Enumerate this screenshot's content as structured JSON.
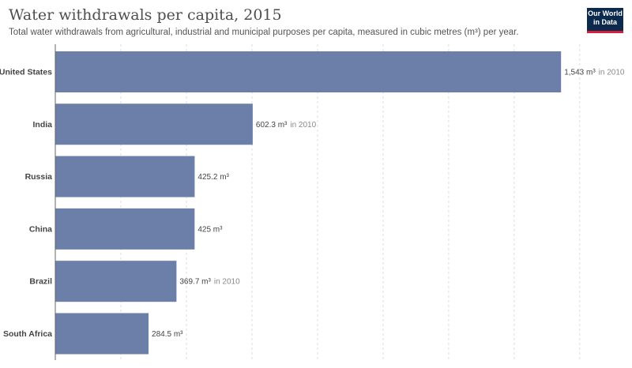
{
  "header": {
    "title": "Water withdrawals per capita, 2015",
    "subtitle": "Total water withdrawals from agricultural, industrial and municipal purposes per capita, measured in cubic metres (m³) per year."
  },
  "logo": {
    "line1": "Our World",
    "line2": "in Data"
  },
  "colors": {
    "bar": "#6b7fa8",
    "grid": "#dddddd",
    "axis": "#666666"
  },
  "chart_data": {
    "type": "bar",
    "orientation": "horizontal",
    "title": "Water withdrawals per capita, 2015",
    "subtitle": "Total water withdrawals from agricultural, industrial and municipal purposes per capita, measured in cubic metres (m³) per year.",
    "categories": [
      "United States",
      "India",
      "Russia",
      "China",
      "Brazil",
      "South Africa"
    ],
    "values": [
      1543,
      602.3,
      425.2,
      425,
      369.7,
      284.5
    ],
    "value_labels": [
      "1,543 m³",
      "602.3 m³",
      "425.2 m³",
      "425 m³",
      "369.7 m³",
      "284.5 m³"
    ],
    "label_suffixes": [
      "in 2010",
      "in 2010",
      "",
      "",
      "in 2010",
      ""
    ],
    "xlim": [
      0,
      1600
    ],
    "grid": true,
    "grid_values": [
      200,
      400,
      600,
      800,
      1000,
      1200,
      1400,
      1600
    ]
  }
}
